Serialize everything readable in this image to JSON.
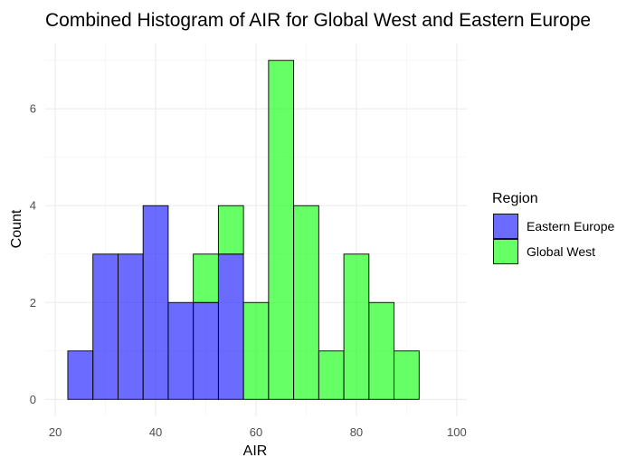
{
  "chart_data": {
    "type": "bar",
    "title": "Combined Histogram of AIR for Global West and Eastern Europe",
    "xlabel": "AIR",
    "ylabel": "Count",
    "xlim": [
      18,
      102
    ],
    "ylim": [
      -0.35,
      7.35
    ],
    "x_ticks": [
      20,
      40,
      60,
      80,
      100
    ],
    "y_ticks": [
      0,
      2,
      4,
      6
    ],
    "bin_width": 5,
    "bin_starts": [
      22.5,
      27.5,
      32.5,
      37.5,
      42.5,
      47.5,
      52.5,
      57.5,
      62.5,
      67.5,
      72.5,
      77.5,
      82.5,
      87.5,
      92.5
    ],
    "grid": true,
    "legend": {
      "title": "Region",
      "position": "right"
    },
    "series": [
      {
        "name": "Eastern Europe",
        "color": "#0000FF",
        "values": [
          1,
          3,
          3,
          4,
          2,
          2,
          3,
          0,
          0,
          0,
          0,
          0,
          0,
          0,
          0
        ]
      },
      {
        "name": "Global West",
        "color": "#00FF00",
        "values": [
          0,
          0,
          0,
          0,
          0,
          1,
          1,
          2,
          7,
          4,
          1,
          3,
          2,
          1,
          0
        ]
      }
    ]
  }
}
